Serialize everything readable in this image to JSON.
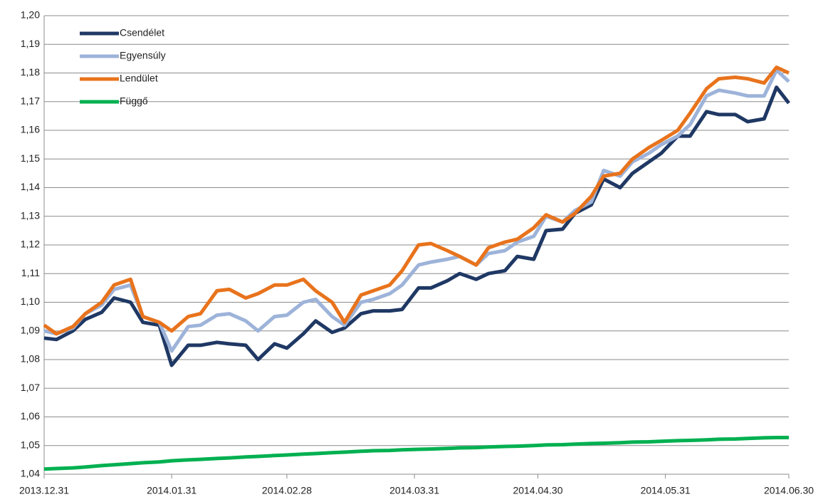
{
  "chart_data": {
    "type": "line",
    "x": [
      "2013.12.31",
      "2014.01.03",
      "2014.01.07",
      "2014.01.10",
      "2014.01.14",
      "2014.01.17",
      "2014.01.21",
      "2014.01.24",
      "2014.01.28",
      "2014.01.31",
      "2014.02.04",
      "2014.02.07",
      "2014.02.11",
      "2014.02.14",
      "2014.02.18",
      "2014.02.21",
      "2014.02.25",
      "2014.02.28",
      "2014.03.04",
      "2014.03.07",
      "2014.03.11",
      "2014.03.14",
      "2014.03.18",
      "2014.03.21",
      "2014.03.25",
      "2014.03.28",
      "2014.04.01",
      "2014.04.04",
      "2014.04.08",
      "2014.04.11",
      "2014.04.15",
      "2014.04.18",
      "2014.04.22",
      "2014.04.25",
      "2014.04.29",
      "2014.05.02",
      "2014.05.06",
      "2014.05.09",
      "2014.05.13",
      "2014.05.16",
      "2014.05.20",
      "2014.05.23",
      "2014.05.27",
      "2014.05.30",
      "2014.06.03",
      "2014.06.06",
      "2014.06.10",
      "2014.06.13",
      "2014.06.17",
      "2014.06.20",
      "2014.06.24",
      "2014.06.27",
      "2014.06.30"
    ],
    "series": [
      {
        "name": "Csendélet",
        "color": "#1f3864",
        "values": [
          1.0875,
          1.087,
          1.09,
          1.094,
          1.0965,
          1.1015,
          1.1,
          1.093,
          1.092,
          1.078,
          1.085,
          1.085,
          1.086,
          1.0855,
          1.085,
          1.08,
          1.0855,
          1.084,
          1.089,
          1.0935,
          1.0895,
          1.091,
          1.096,
          1.097,
          1.097,
          1.0975,
          1.105,
          1.105,
          1.1075,
          1.11,
          1.108,
          1.11,
          1.111,
          1.116,
          1.115,
          1.125,
          1.1255,
          1.131,
          1.134,
          1.143,
          1.14,
          1.145,
          1.149,
          1.152,
          1.158,
          1.158,
          1.1665,
          1.1655,
          1.1655,
          1.163,
          1.164,
          1.175,
          1.1695
        ]
      },
      {
        "name": "Egyensúly",
        "color": "#9db3d9",
        "values": [
          1.09,
          1.089,
          1.091,
          1.096,
          1.099,
          1.1045,
          1.106,
          1.095,
          1.093,
          1.083,
          1.0915,
          1.092,
          1.0955,
          1.096,
          1.0935,
          1.09,
          1.095,
          1.0955,
          1.1,
          1.101,
          1.095,
          1.092,
          1.1,
          1.101,
          1.103,
          1.106,
          1.113,
          1.114,
          1.115,
          1.116,
          1.113,
          1.117,
          1.118,
          1.121,
          1.123,
          1.13,
          1.128,
          1.132,
          1.135,
          1.146,
          1.144,
          1.149,
          1.152,
          1.155,
          1.158,
          1.162,
          1.172,
          1.174,
          1.173,
          1.172,
          1.172,
          1.181,
          1.177
        ]
      },
      {
        "name": "Lendület",
        "color": "#e8731c",
        "values": [
          1.092,
          1.089,
          1.0915,
          1.096,
          1.1,
          1.106,
          1.108,
          1.095,
          1.093,
          1.09,
          1.095,
          1.096,
          1.104,
          1.1045,
          1.1015,
          1.103,
          1.106,
          1.106,
          1.108,
          1.104,
          1.1,
          1.093,
          1.1025,
          1.104,
          1.106,
          1.111,
          1.12,
          1.1205,
          1.118,
          1.116,
          1.113,
          1.119,
          1.121,
          1.122,
          1.126,
          1.1305,
          1.128,
          1.131,
          1.137,
          1.144,
          1.145,
          1.15,
          1.154,
          1.1565,
          1.16,
          1.166,
          1.1745,
          1.178,
          1.1785,
          1.178,
          1.1765,
          1.182,
          1.18
        ]
      },
      {
        "name": "Függő",
        "color": "#00b050",
        "values": [
          1.0418,
          1.042,
          1.0422,
          1.0425,
          1.043,
          1.0433,
          1.0437,
          1.044,
          1.0443,
          1.0447,
          1.045,
          1.0452,
          1.0455,
          1.0457,
          1.046,
          1.0462,
          1.0465,
          1.0467,
          1.047,
          1.0472,
          1.0475,
          1.0477,
          1.048,
          1.0482,
          1.0483,
          1.0485,
          1.0487,
          1.0488,
          1.049,
          1.0492,
          1.0493,
          1.0495,
          1.0497,
          1.0498,
          1.05,
          1.0502,
          1.0503,
          1.0505,
          1.0507,
          1.0508,
          1.051,
          1.0512,
          1.0513,
          1.0515,
          1.0517,
          1.0518,
          1.052,
          1.0522,
          1.0523,
          1.0525,
          1.0527,
          1.0528,
          1.0528
        ]
      }
    ],
    "xlim": [
      "2013.12.31",
      "2014.06.30"
    ],
    "xticks": [
      "2013.12.31",
      "2014.01.31",
      "2014.02.28",
      "2014.03.31",
      "2014.04.30",
      "2014.05.31",
      "2014.06.30"
    ],
    "ylim": [
      1.04,
      1.2
    ],
    "yticks": [
      {
        "value": 1.04,
        "label": "1,04"
      },
      {
        "value": 1.05,
        "label": "1,05"
      },
      {
        "value": 1.06,
        "label": "1,06"
      },
      {
        "value": 1.07,
        "label": "1,07"
      },
      {
        "value": 1.08,
        "label": "1,08"
      },
      {
        "value": 1.09,
        "label": "1,09"
      },
      {
        "value": 1.1,
        "label": "1,10"
      },
      {
        "value": 1.11,
        "label": "1,11"
      },
      {
        "value": 1.12,
        "label": "1,12"
      },
      {
        "value": 1.13,
        "label": "1,13"
      },
      {
        "value": 1.14,
        "label": "1,14"
      },
      {
        "value": 1.15,
        "label": "1,15"
      },
      {
        "value": 1.16,
        "label": "1,16"
      },
      {
        "value": 1.17,
        "label": "1,17"
      },
      {
        "value": 1.18,
        "label": "1,18"
      },
      {
        "value": 1.19,
        "label": "1,19"
      },
      {
        "value": 1.2,
        "label": "1,20"
      }
    ],
    "grid": true,
    "legend": "upper left"
  }
}
